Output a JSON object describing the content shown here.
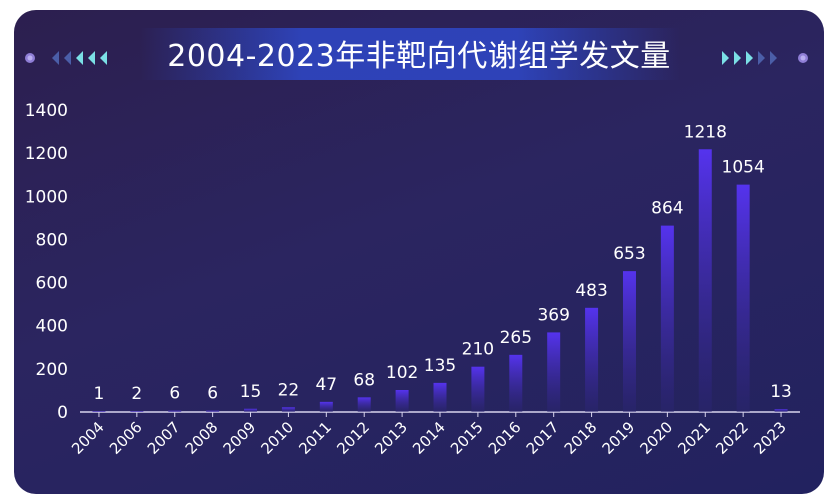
{
  "title": "2004-2023年非靶向代谢组学发文量",
  "colors": {
    "bar_top": "#5533ee",
    "bar_bottom": "#2a2470",
    "axis": "#d8d4ee",
    "text": "#ffffff",
    "deco_dot": "#8f7ed6",
    "deco_arrow_bright": "#7be0e6",
    "deco_arrow_dim": "#4b5ea8"
  },
  "decor": {
    "left_icon": "left-arrow-chevrons-icon",
    "right_icon": "right-arrow-chevrons-icon"
  },
  "chart_data": {
    "type": "bar",
    "title": "2004-2023年非靶向代谢组学发文量",
    "xlabel": "",
    "ylabel": "",
    "categories": [
      "2004",
      "2006",
      "2007",
      "2008",
      "2009",
      "2010",
      "2011",
      "2012",
      "2013",
      "2014",
      "2015",
      "2016",
      "2017",
      "2018",
      "2019",
      "2020",
      "2021",
      "2022",
      "2023"
    ],
    "values": [
      1,
      2,
      6,
      6,
      15,
      22,
      47,
      68,
      102,
      135,
      210,
      265,
      369,
      483,
      653,
      864,
      1218,
      1054,
      13
    ],
    "ylim": [
      0,
      1400
    ],
    "yticks": [
      0,
      200,
      400,
      600,
      800,
      1000,
      1200,
      1400
    ],
    "grid": false,
    "legend": "none",
    "data_labels": true
  }
}
